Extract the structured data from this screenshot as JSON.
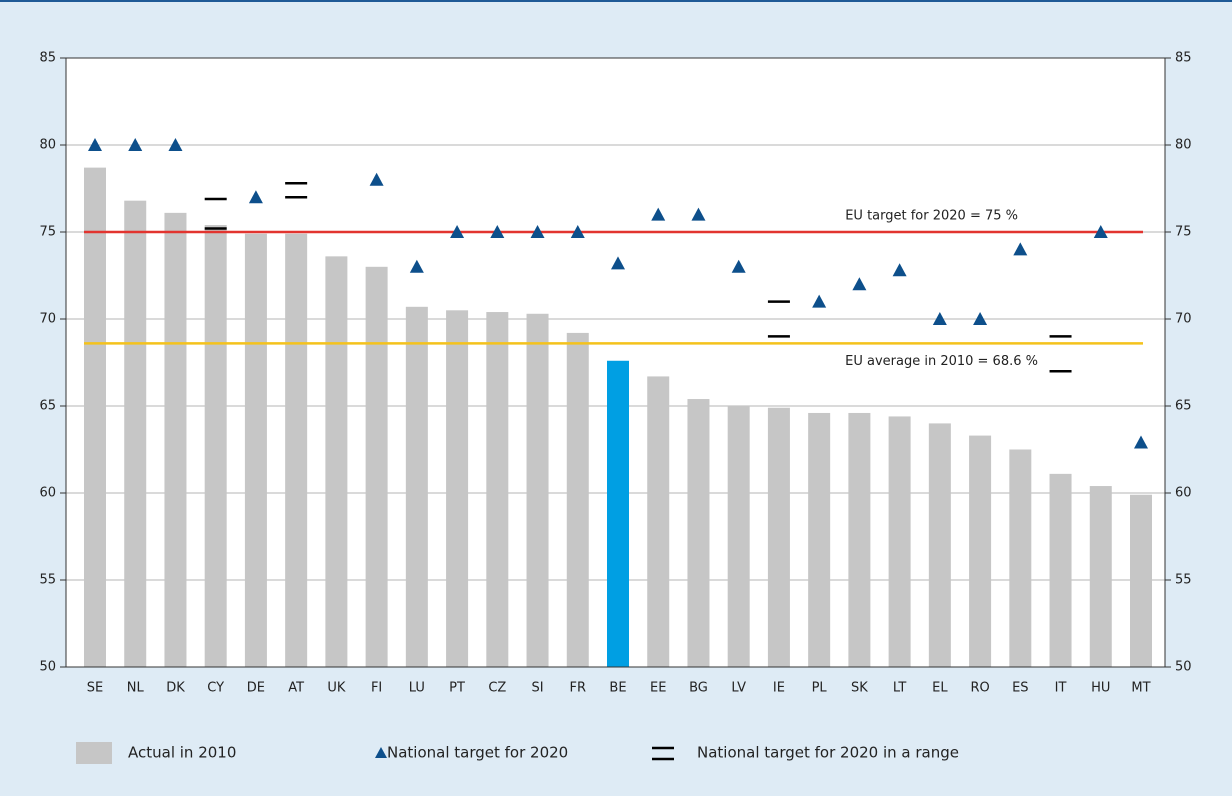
{
  "chart_data": {
    "type": "bar",
    "categories": [
      "SE",
      "NL",
      "DK",
      "CY",
      "DE",
      "AT",
      "UK",
      "FI",
      "LU",
      "PT",
      "CZ",
      "SI",
      "FR",
      "BE",
      "EE",
      "BG",
      "LV",
      "IE",
      "PL",
      "SK",
      "LT",
      "EL",
      "RO",
      "ES",
      "IT",
      "HU",
      "MT"
    ],
    "series": [
      {
        "name": "Actual in 2010",
        "kind": "bar",
        "color": "#c6c6c6",
        "colors": [
          "#c6c6c6",
          "#c6c6c6",
          "#c6c6c6",
          "#c6c6c6",
          "#c6c6c6",
          "#c6c6c6",
          "#c6c6c6",
          "#c6c6c6",
          "#c6c6c6",
          "#c6c6c6",
          "#c6c6c6",
          "#c6c6c6",
          "#c6c6c6",
          "#009fe3",
          "#c6c6c6",
          "#c6c6c6",
          "#c6c6c6",
          "#c6c6c6",
          "#c6c6c6",
          "#c6c6c6",
          "#c6c6c6",
          "#c6c6c6",
          "#c6c6c6",
          "#c6c6c6",
          "#c6c6c6",
          "#c6c6c6",
          "#c6c6c6"
        ],
        "values": [
          78.7,
          76.8,
          76.1,
          75.4,
          74.9,
          74.9,
          73.6,
          73.0,
          70.7,
          70.5,
          70.4,
          70.3,
          69.2,
          67.6,
          66.7,
          65.4,
          65.0,
          64.9,
          64.6,
          64.6,
          64.4,
          64.0,
          63.3,
          62.5,
          61.1,
          60.4,
          59.9
        ]
      },
      {
        "name": "National target for 2020",
        "kind": "triangle",
        "color": "#0d4f8b",
        "values": [
          80,
          80,
          80,
          null,
          77,
          null,
          null,
          78,
          73,
          75,
          75,
          75,
          75,
          73.2,
          76,
          76,
          73,
          null,
          71,
          72,
          72.8,
          70,
          70,
          74,
          null,
          75,
          62.9
        ]
      },
      {
        "name": "National target for 2020 in a range",
        "kind": "range",
        "color": "#000000",
        "low": [
          null,
          null,
          null,
          75.2,
          null,
          77,
          null,
          null,
          null,
          null,
          null,
          null,
          null,
          null,
          null,
          null,
          null,
          69,
          null,
          null,
          null,
          null,
          null,
          null,
          67,
          null,
          null
        ],
        "high": [
          null,
          null,
          null,
          76.9,
          null,
          77.8,
          null,
          null,
          null,
          null,
          null,
          null,
          null,
          null,
          null,
          null,
          null,
          71,
          null,
          null,
          null,
          null,
          null,
          null,
          69,
          null,
          null
        ]
      }
    ],
    "reference_lines": [
      {
        "label": "EU target for 2020 = 75 %",
        "value": 75,
        "color": "#e2342f"
      },
      {
        "label": "EU average in  2010 = 68.6 %",
        "value": 68.6,
        "color": "#f4c21c"
      }
    ],
    "ylim": [
      50,
      85
    ],
    "yticks": [
      50,
      55,
      60,
      65,
      70,
      75,
      80,
      85
    ],
    "y2lim": [
      50,
      85
    ],
    "y2ticks": [
      50,
      55,
      60,
      65,
      70,
      75,
      80,
      85
    ],
    "grid": true
  }
}
